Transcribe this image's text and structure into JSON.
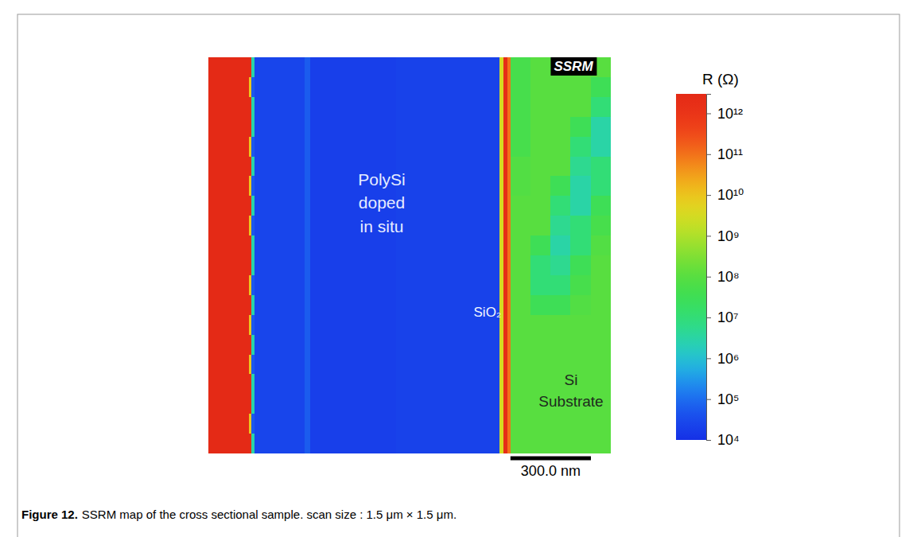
{
  "chart_data": {
    "type": "heatmap",
    "log": true,
    "tick_labels": false,
    "xlim": [
      0,
      1500
    ],
    "ylim": [
      0,
      1500
    ],
    "x_edges": [
      0,
      150,
      160,
      172,
      360,
      378,
      700,
      1085,
      1100,
      1115,
      1125,
      1200,
      1275,
      1350,
      1425,
      1500
    ],
    "y_edges": [
      0,
      75,
      150,
      225,
      300,
      375,
      450,
      525,
      600,
      675,
      750,
      825,
      900,
      975,
      1050,
      1125,
      1200,
      1275,
      1350,
      1425,
      1500
    ],
    "cells": [
      [
        3000000000000.0,
        3000000000000.0,
        3000000.0,
        25000.0,
        60000.0,
        20000.0,
        22000.0,
        3000000000.0,
        2000000000000.0,
        100000000000.0,
        50000000.0,
        100000000.0,
        100000000.0,
        100000000.0,
        100000000.0
      ],
      [
        3000000000000.0,
        10000000000.0,
        50000.0,
        25000.0,
        60000.0,
        20000.0,
        22000.0,
        3000000000.0,
        2000000000000.0,
        100000000000.0,
        50000000.0,
        100000000.0,
        100000000.0,
        100000000.0,
        30000000.0
      ],
      [
        3000000000000.0,
        3000000000000.0,
        3000000.0,
        25000.0,
        60000.0,
        20000.0,
        22000.0,
        3000000000.0,
        2000000000000.0,
        100000000000.0,
        50000000.0,
        100000000.0,
        100000000.0,
        100000000.0,
        10000000.0
      ],
      [
        3000000000000.0,
        3000000000000.0,
        3000000.0,
        25000.0,
        60000.0,
        20000.0,
        22000.0,
        3000000000.0,
        2000000000000.0,
        100000000000.0,
        50000000.0,
        100000000.0,
        100000000.0,
        30000000.0,
        3000000.0
      ],
      [
        3000000000000.0,
        10000000000.0,
        50000.0,
        25000.0,
        60000.0,
        20000.0,
        22000.0,
        3000000000.0,
        2000000000000.0,
        100000000000.0,
        50000000.0,
        100000000.0,
        100000000.0,
        10000000.0,
        3000000.0
      ],
      [
        3000000000000.0,
        3000000000000.0,
        3000000.0,
        25000.0,
        60000.0,
        20000.0,
        22000.0,
        3000000000.0,
        2000000000000.0,
        100000000000.0,
        80000000.0,
        100000000.0,
        100000000.0,
        5000000.0,
        10000000.0
      ],
      [
        3000000000000.0,
        10000000000.0,
        50000.0,
        25000.0,
        60000.0,
        20000.0,
        22000.0,
        3000000000.0,
        2000000000000.0,
        100000000000.0,
        80000000.0,
        100000000.0,
        30000000.0,
        3000000.0,
        10000000.0
      ],
      [
        3000000000000.0,
        3000000000000.0,
        3000000.0,
        25000.0,
        60000.0,
        20000.0,
        22000.0,
        3000000000.0,
        2000000000000.0,
        100000000000.0,
        100000000.0,
        100000000.0,
        10000000.0,
        3000000.0,
        30000000.0
      ],
      [
        3000000000000.0,
        10000000000.0,
        50000.0,
        25000.0,
        60000.0,
        20000.0,
        22000.0,
        3000000000.0,
        2000000000000.0,
        100000000000.0,
        100000000.0,
        100000000.0,
        5000000.0,
        10000000.0,
        50000000.0
      ],
      [
        3000000000000.0,
        3000000000000.0,
        3000000.0,
        25000.0,
        60000.0,
        20000.0,
        22000.0,
        3000000000.0,
        2000000000000.0,
        100000000000.0,
        100000000.0,
        30000000.0,
        3000000.0,
        10000000.0,
        80000000.0
      ],
      [
        3000000000000.0,
        3000000000000.0,
        3000000.0,
        25000.0,
        60000.0,
        20000.0,
        22000.0,
        3000000000.0,
        2000000000000.0,
        100000000000.0,
        100000000.0,
        10000000.0,
        5000000.0,
        30000000.0,
        100000000.0
      ],
      [
        3000000000000.0,
        10000000000.0,
        50000.0,
        25000.0,
        60000.0,
        20000.0,
        22000.0,
        3000000000.0,
        2000000000000.0,
        100000000000.0,
        100000000.0,
        10000000.0,
        10000000.0,
        50000000.0,
        100000000.0
      ],
      [
        3000000000000.0,
        3000000000000.0,
        3000000.0,
        25000.0,
        60000.0,
        20000.0,
        22000.0,
        3000000000.0,
        2000000000000.0,
        100000000000.0,
        100000000.0,
        30000000.0,
        30000000.0,
        80000000.0,
        100000000.0
      ],
      [
        3000000000000.0,
        10000000000.0,
        50000.0,
        25000.0,
        60000.0,
        20000.0,
        22000.0,
        3000000000.0,
        2000000000000.0,
        100000000000.0,
        100000000.0,
        100000000.0,
        100000000.0,
        100000000.0,
        100000000.0
      ],
      [
        3000000000000.0,
        3000000000000.0,
        3000000.0,
        25000.0,
        60000.0,
        20000.0,
        22000.0,
        3000000000.0,
        2000000000000.0,
        100000000000.0,
        100000000.0,
        100000000.0,
        100000000.0,
        100000000.0,
        100000000.0
      ],
      [
        3000000000000.0,
        10000000000.0,
        50000.0,
        25000.0,
        60000.0,
        20000.0,
        22000.0,
        3000000000.0,
        2000000000000.0,
        100000000000.0,
        100000000.0,
        100000000.0,
        100000000.0,
        100000000.0,
        100000000.0
      ],
      [
        3000000000000.0,
        3000000000000.0,
        3000000.0,
        25000.0,
        60000.0,
        20000.0,
        22000.0,
        3000000000.0,
        2000000000000.0,
        100000000000.0,
        100000000.0,
        100000000.0,
        100000000.0,
        100000000.0,
        100000000.0
      ],
      [
        3000000000000.0,
        3000000000000.0,
        3000000.0,
        25000.0,
        60000.0,
        20000.0,
        22000.0,
        3000000000.0,
        2000000000000.0,
        100000000000.0,
        100000000.0,
        100000000.0,
        100000000.0,
        100000000.0,
        100000000.0
      ],
      [
        3000000000000.0,
        10000000000.0,
        50000.0,
        25000.0,
        60000.0,
        20000.0,
        22000.0,
        3000000000.0,
        2000000000000.0,
        100000000000.0,
        100000000.0,
        100000000.0,
        100000000.0,
        100000000.0,
        100000000.0
      ],
      [
        3000000000000.0,
        3000000000000.0,
        3000000.0,
        25000.0,
        60000.0,
        20000.0,
        22000.0,
        3000000000.0,
        2000000000000.0,
        100000000000.0,
        100000000.0,
        100000000.0,
        100000000.0,
        100000000.0,
        100000000.0
      ]
    ],
    "colorbar": {
      "title": "R (Ω)",
      "range": [
        10000,
        3000000000000.0
      ],
      "ticks": [
        {
          "value": 10000,
          "label": "10⁴"
        },
        {
          "value": 100000,
          "label": "10⁵"
        },
        {
          "value": 1000000,
          "label": "10⁶"
        },
        {
          "value": 10000000,
          "label": "10⁷"
        },
        {
          "value": 100000000,
          "label": "10⁸"
        },
        {
          "value": 1000000000,
          "label": "10⁹"
        },
        {
          "value": 10000000000,
          "label": "10¹⁰"
        },
        {
          "value": 100000000000,
          "label": "10¹¹"
        },
        {
          "value": 1000000000000,
          "label": "10¹²"
        }
      ]
    },
    "badge": "SSRM",
    "annotations": [
      [
        "PolySi",
        "doped",
        "in situ"
      ],
      [
        "SiO₂"
      ],
      [
        "Si",
        "Substrate"
      ]
    ],
    "scale_bar": {
      "value": 300,
      "label": "300.0 nm"
    },
    "caption": {
      "label": "Figure 12.",
      "text": "SSRM map of the cross sectional sample. scan size : 1.5 μm × 1.5 μm."
    }
  }
}
